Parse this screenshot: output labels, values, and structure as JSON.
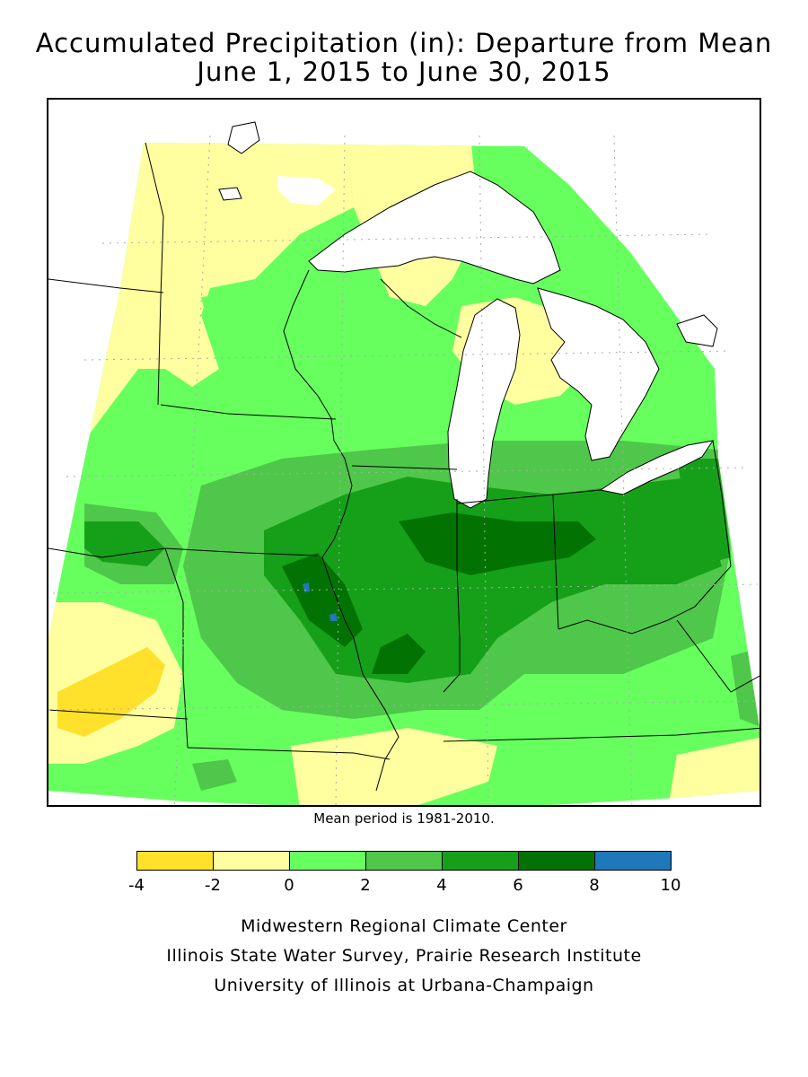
{
  "title": {
    "line1": "Accumulated Precipitation (in): Departure from Mean",
    "line2": "June 1, 2015 to June 30, 2015"
  },
  "note": "Mean period is 1981-2010.",
  "legend": {
    "ticks": [
      "-4",
      "-2",
      "0",
      "2",
      "4",
      "6",
      "8",
      "10"
    ],
    "bins": [
      {
        "from": -4,
        "to": -2,
        "color": "#ffe02b"
      },
      {
        "from": -2,
        "to": 0,
        "color": "#ffffa0"
      },
      {
        "from": 0,
        "to": 2,
        "color": "#66ff5e"
      },
      {
        "from": 2,
        "to": 4,
        "color": "#4fc74a"
      },
      {
        "from": 4,
        "to": 6,
        "color": "#16a01a"
      },
      {
        "from": 6,
        "to": 8,
        "color": "#027302"
      },
      {
        "from": 8,
        "to": 10,
        "color": "#1e78b9"
      }
    ]
  },
  "credits": {
    "line1": "Midwestern Regional Climate Center",
    "line2": "Illinois State Water Survey, Prairie Research Institute",
    "line3": "University of Illinois at Urbana-Champaign"
  }
}
